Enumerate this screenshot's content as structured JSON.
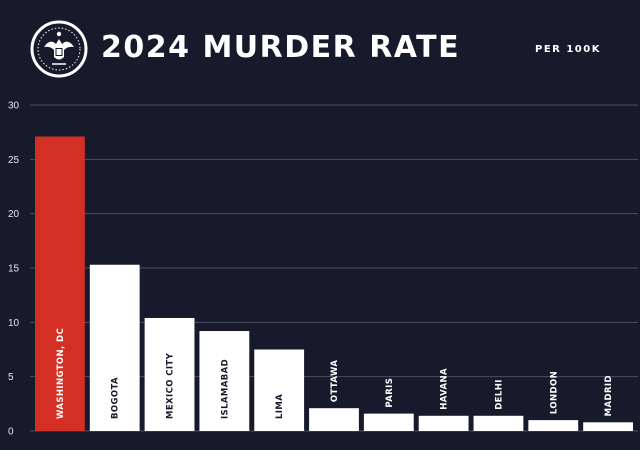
{
  "header": {
    "title": "2024 MURDER RATE",
    "unit_label": "PER 100K"
  },
  "colors": {
    "background": "#161a2b",
    "highlight": "#d32f24",
    "bar": "#ffffff",
    "grid": "#4a4f63"
  },
  "chart_data": {
    "type": "bar",
    "title": "2024 MURDER RATE",
    "subtitle": "PER 100K",
    "xlabel": "",
    "ylabel": "",
    "categories": [
      "WASHINGTON, DC",
      "BOGOTA",
      "MEXICO CITY",
      "ISLAMABAD",
      "LIMA",
      "OTTAWA",
      "PARIS",
      "HAVANA",
      "DELHI",
      "LONDON",
      "MADRID"
    ],
    "values": [
      27.1,
      15.3,
      10.4,
      9.2,
      7.5,
      2.1,
      1.6,
      1.4,
      1.4,
      1.0,
      0.8
    ],
    "highlight_index": 0,
    "ylim": [
      0,
      30
    ],
    "yticks": [
      0,
      5,
      10,
      15,
      20,
      25,
      30
    ],
    "grid": true,
    "legend": "none"
  }
}
